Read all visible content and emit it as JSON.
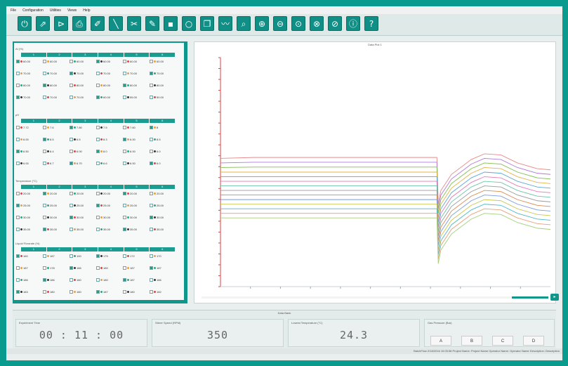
{
  "menu": [
    "File",
    "Configuration",
    "Utilities",
    "Views",
    "Help"
  ],
  "toolbar": {
    "buttons": [
      {
        "name": "power-icon",
        "glyph": "⏻"
      },
      {
        "name": "export-icon",
        "glyph": "⇗"
      },
      {
        "name": "connect-icon",
        "glyph": "⊳"
      },
      {
        "name": "print-icon",
        "glyph": "⎙"
      },
      {
        "name": "brush-icon",
        "glyph": "✐"
      },
      {
        "name": "probe-icon",
        "glyph": "╲"
      },
      {
        "name": "scissors-icon",
        "glyph": "✂"
      },
      {
        "name": "pen-icon",
        "glyph": "✎"
      },
      {
        "name": "save-icon",
        "glyph": "▪"
      },
      {
        "name": "record-icon",
        "glyph": "○"
      },
      {
        "name": "document-icon",
        "glyph": "❐"
      },
      {
        "name": "chart-icon",
        "glyph": "〰"
      },
      {
        "name": "report-icon",
        "glyph": "⌕"
      },
      {
        "name": "zoom-in-icon",
        "glyph": "⊕"
      },
      {
        "name": "zoom-out-icon",
        "glyph": "⊖"
      },
      {
        "name": "zoom-fit-icon",
        "glyph": "⊙"
      },
      {
        "name": "zoom-x-icon",
        "glyph": "⊗"
      },
      {
        "name": "zoom-y-icon",
        "glyph": "⊘"
      },
      {
        "name": "info-icon",
        "glyph": "ⓘ"
      },
      {
        "name": "help-icon",
        "glyph": "?"
      }
    ]
  },
  "left_panel": {
    "sections": [
      {
        "title": "AI (%)",
        "columns": [
          "1",
          "2",
          "3",
          "4",
          "5",
          "6"
        ],
        "rows": [
          [
            "60.00",
            "60.00",
            "60.00",
            "60.00",
            "60.00",
            "60.00"
          ],
          [
            "70.00",
            "70.00",
            "70.00",
            "70.00",
            "70.00",
            "70.00"
          ],
          [
            "80.00",
            "80.00",
            "80.00",
            "80.00",
            "80.00",
            "80.00"
          ],
          [
            "70.00",
            "70.00",
            "70.00",
            "60.00",
            "55.00",
            "50.00"
          ]
        ]
      },
      {
        "title": "pH",
        "columns": [
          "1",
          "2",
          "3",
          "4",
          "5",
          "6"
        ],
        "rows": [
          [
            "7.72",
            "7.6",
            "7.80",
            "7.5",
            "7.60",
            "8"
          ],
          [
            "6.00",
            "8.5",
            "6.5",
            "8.3",
            "6.00",
            "8.5"
          ],
          [
            "6.50",
            "8.4",
            "6.00",
            "8.0",
            "6.00",
            "6.0"
          ],
          [
            "6.00",
            "6.7",
            "6.70",
            "6.6",
            "6.00",
            "6.0"
          ]
        ]
      },
      {
        "title": "Temperature (°C)",
        "columns": [
          "1",
          "2",
          "3",
          "4",
          "5",
          "6"
        ],
        "rows": [
          [
            "20.00",
            "20.00",
            "20.00",
            "20.00",
            "20.00",
            "20.00"
          ],
          [
            "25.00",
            "25.00",
            "25.00",
            "25.00",
            "25.00",
            "25.00"
          ],
          [
            "30.00",
            "30.00",
            "30.00",
            "30.00",
            "30.00",
            "30.00"
          ],
          [
            "35.00",
            "35.00",
            "35.00",
            "35.00",
            "35.00",
            "35.00"
          ]
        ]
      },
      {
        "title": "Liquid Flowrate (%)",
        "columns": [
          "1",
          "2",
          "3",
          "4",
          "5",
          "6"
        ],
        "rows": [
          [
            "160",
            "187",
            "100",
            "175",
            "172",
            "170"
          ],
          [
            "187",
            "178",
            "186",
            "180",
            "187",
            "187"
          ],
          [
            "186",
            "186",
            "180",
            "180",
            "187",
            "186"
          ],
          [
            "183",
            "180",
            "180",
            "187",
            "180",
            "182"
          ]
        ]
      }
    ]
  },
  "chart": {
    "title": "Data Plot 1",
    "x_ticks": [
      "",
      "",
      "",
      "",
      "",
      "",
      "",
      "",
      "",
      ""
    ],
    "y_ticks": [
      "",
      "",
      "",
      "",
      "",
      "",
      "",
      "",
      "",
      "",
      "",
      "",
      "",
      "",
      "",
      "",
      "",
      "",
      "",
      "",
      "",
      ""
    ]
  },
  "chart_data": {
    "type": "line",
    "x": [
      0,
      10,
      20,
      30,
      40,
      50,
      60,
      65.6,
      66,
      66.8,
      70,
      76,
      80,
      85,
      90,
      96,
      100
    ],
    "series": [
      {
        "color": "#e88a8a",
        "values": [
          56,
          56.4,
          56.4,
          56.4,
          56.4,
          56.4,
          56.4,
          56.4,
          36,
          42,
          49,
          55.5,
          58,
          57.5,
          54,
          51.5,
          51
        ]
      },
      {
        "color": "#b07bd8",
        "values": [
          54,
          54.3,
          54.3,
          54.3,
          54.3,
          54.3,
          54.3,
          54.3,
          34,
          40,
          47,
          53.5,
          56,
          55.5,
          52,
          49.5,
          49
        ]
      },
      {
        "color": "#7fbf4d",
        "values": [
          52,
          52.2,
          52.2,
          52.2,
          52.2,
          52.2,
          52.2,
          52.2,
          32,
          38,
          45,
          51.5,
          54,
          53.5,
          50,
          47.5,
          47
        ]
      },
      {
        "color": "#e0b44a",
        "values": [
          50,
          50,
          50,
          50,
          50,
          50,
          50,
          50,
          30,
          36,
          43,
          49.5,
          52,
          51.5,
          48,
          45.5,
          45
        ]
      },
      {
        "color": "#5aa9d6",
        "values": [
          48,
          48,
          48,
          48,
          48,
          48,
          48,
          48,
          28,
          34,
          41,
          47.5,
          50,
          49.5,
          46,
          43.5,
          43
        ]
      },
      {
        "color": "#e07bb5",
        "values": [
          46,
          46,
          46,
          46,
          46,
          46,
          46,
          46,
          26,
          32,
          39,
          45.5,
          48,
          47.5,
          44,
          41.5,
          41
        ]
      },
      {
        "color": "#6cc6a8",
        "values": [
          44,
          44,
          44,
          44,
          44,
          44,
          44,
          44,
          24,
          30,
          37,
          43.5,
          46,
          45.5,
          42,
          39.5,
          39
        ]
      },
      {
        "color": "#9a9a9a",
        "values": [
          42,
          42,
          42,
          42,
          42,
          42,
          42,
          42,
          22,
          28,
          35,
          41.5,
          44,
          43.5,
          40,
          37.5,
          37
        ]
      },
      {
        "color": "#d98c4f",
        "values": [
          40,
          40,
          40,
          40,
          40,
          40,
          40,
          40,
          20,
          26,
          33,
          39.5,
          42,
          41.5,
          38,
          35.5,
          35
        ]
      },
      {
        "color": "#7a9be0",
        "values": [
          38,
          38,
          38,
          38,
          38,
          38,
          38,
          38,
          18,
          24,
          31,
          37.5,
          40,
          39.5,
          36,
          33.5,
          33
        ]
      },
      {
        "color": "#c9c94c",
        "values": [
          36,
          36,
          36,
          36,
          36,
          36,
          36,
          36,
          16,
          22,
          29,
          35.5,
          38,
          37.5,
          34,
          31.5,
          31
        ]
      },
      {
        "color": "#4fb7c9",
        "values": [
          34,
          34,
          34,
          34,
          34,
          34,
          34,
          34,
          14,
          20,
          27,
          33.5,
          36,
          35.5,
          32,
          29.5,
          29
        ]
      },
      {
        "color": "#e6a07a",
        "values": [
          32,
          32,
          32,
          32,
          32,
          32,
          32,
          32,
          12,
          18,
          25,
          31.5,
          34,
          33.5,
          30,
          27.5,
          27
        ]
      },
      {
        "color": "#a3d07a",
        "values": [
          30,
          30,
          30,
          30,
          30,
          30,
          30,
          30,
          10,
          16,
          23,
          29.5,
          32,
          31.5,
          28,
          25.5,
          25
        ]
      }
    ],
    "xlim": [
      0,
      100
    ],
    "ylim": [
      0,
      100
    ],
    "grid": false
  },
  "status": {
    "title": "Data Bank",
    "boxes": [
      {
        "label": "Experiment Time",
        "value": "00 : 11 : 00"
      },
      {
        "label": "Stirrer Speed (RPM)",
        "value": "350"
      },
      {
        "label": "Lowest Temperature (°C)",
        "value": "24.3"
      }
    ],
    "gas": {
      "label": "Gas Pressure (Bar)",
      "buttons": [
        "A",
        "B",
        "C",
        "D"
      ]
    }
  },
  "footer": {
    "text": "BatchFlow 2/18/2016 10:05:58 Project Name: Project Name  Operator Name: Operator Name  Description: Description"
  },
  "colors": {
    "accent": "#0b9a8e",
    "axis": "#e04040"
  }
}
